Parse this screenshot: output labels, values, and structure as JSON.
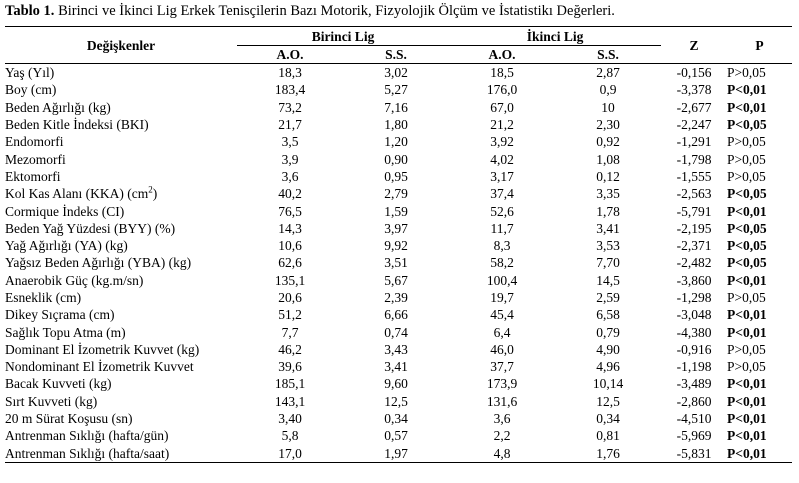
{
  "caption": {
    "label": "Tablo 1.",
    "text": " Birinci ve İkinci Lig Erkek Tenisçilerin Bazı Motorik, Fizyolojik Ölçüm ve İstatistikı  Değerleri."
  },
  "headers": {
    "variable": "Değişkenler",
    "group1": "Birinci Lig",
    "group2": "İkinci Lig",
    "mean": "A.O.",
    "sd": "S.S.",
    "z": "Z",
    "p": "P"
  },
  "rows": [
    {
      "name": "Yaş (Yıl)",
      "m1": "18,3",
      "s1": "3,02",
      "m2": "18,5",
      "s2": "2,87",
      "z": "-0,156",
      "p": "P>0,05",
      "sig": false
    },
    {
      "name": "Boy (cm)",
      "m1": "183,4",
      "s1": "5,27",
      "m2": "176,0",
      "s2": "0,9",
      "z": "-3,378",
      "p": "P<0,01",
      "sig": true
    },
    {
      "name": "Beden Ağırlığı (kg)",
      "m1": "73,2",
      "s1": "7,16",
      "m2": "67,0",
      "s2": "10",
      "z": "-2,677",
      "p": "P<0,01",
      "sig": true
    },
    {
      "name": "Beden Kitle İndeksi (BKI)",
      "m1": "21,7",
      "s1": "1,80",
      "m2": "21,2",
      "s2": "2,30",
      "z": "-2,247",
      "p": "P<0,05",
      "sig": true
    },
    {
      "name": "Endomorfi",
      "m1": "3,5",
      "s1": "1,20",
      "m2": "3,92",
      "s2": "0,92",
      "z": "-1,291",
      "p": "P>0,05",
      "sig": false
    },
    {
      "name": "Mezomorfi",
      "m1": "3,9",
      "s1": "0,90",
      "m2": "4,02",
      "s2": "1,08",
      "z": "-1,798",
      "p": "P>0,05",
      "sig": false
    },
    {
      "name": "Ektomorfi",
      "m1": "3,6",
      "s1": "0,95",
      "m2": "3,17",
      "s2": "0,12",
      "z": "-1,555",
      "p": "P>0,05",
      "sig": false
    },
    {
      "name": "Kol Kas Alanı (KKA) (cm",
      "sup": "2",
      "suffix": ")",
      "m1": "40,2",
      "s1": "2,79",
      "m2": "37,4",
      "s2": "3,35",
      "z": "-2,563",
      "p": "P<0,05",
      "sig": true
    },
    {
      "name": "Cormique İndeks (CI)",
      "m1": "76,5",
      "s1": "1,59",
      "m2": "52,6",
      "s2": "1,78",
      "z": "-5,791",
      "p": "P<0,01",
      "sig": true
    },
    {
      "name": "Beden Yağ Yüzdesi (BYY) (%)",
      "m1": "14,3",
      "s1": "3,97",
      "m2": "11,7",
      "s2": "3,41",
      "z": "-2,195",
      "p": "P<0,05",
      "sig": true
    },
    {
      "name": "Yağ Ağırlığı (YA) (kg)",
      "m1": "10,6",
      "s1": "9,92",
      "m2": "8,3",
      "s2": "3,53",
      "z": "-2,371",
      "p": "P<0,05",
      "sig": true
    },
    {
      "name": "Yağsız Beden Ağırlığı (YBA) (kg)",
      "m1": "62,6",
      "s1": "3,51",
      "m2": "58,2",
      "s2": "7,70",
      "z": "-2,482",
      "p": "P<0,05",
      "sig": true
    },
    {
      "name": "Anaerobik Güç (kg.m/sn)",
      "m1": "135,1",
      "s1": "5,67",
      "m2": "100,4",
      "s2": "14,5",
      "z": "-3,860",
      "p": "P<0,01",
      "sig": true
    },
    {
      "name": "Esneklik (cm)",
      "m1": "20,6",
      "s1": "2,39",
      "m2": "19,7",
      "s2": "2,59",
      "z": "-1,298",
      "p": "P>0,05",
      "sig": false
    },
    {
      "name": "Dikey Sıçrama (cm)",
      "m1": "51,2",
      "s1": "6,66",
      "m2": "45,4",
      "s2": "6,58",
      "z": "-3,048",
      "p": "P<0,01",
      "sig": true
    },
    {
      "name": "Sağlık Topu Atma (m)",
      "m1": "7,7",
      "s1": "0,74",
      "m2": "6,4",
      "s2": "0,79",
      "z": "-4,380",
      "p": "P<0,01",
      "sig": true
    },
    {
      "name": "Dominant El İzometrik Kuvvet (kg)",
      "m1": "46,2",
      "s1": "3,43",
      "m2": "46,0",
      "s2": "4,90",
      "z": "-0,916",
      "p": "P>0,05",
      "sig": false
    },
    {
      "name": "Nondominant El İzometrik Kuvvet",
      "m1": "39,6",
      "s1": "3,41",
      "m2": "37,7",
      "s2": "4,96",
      "z": "-1,198",
      "p": "P>0,05",
      "sig": false
    },
    {
      "name": "Bacak Kuvveti (kg)",
      "m1": "185,1",
      "s1": "9,60",
      "m2": "173,9",
      "s2": "10,14",
      "z": "-3,489",
      "p": "P<0,01",
      "sig": true
    },
    {
      "name": "Sırt Kuvveti (kg)",
      "m1": "143,1",
      "s1": "12,5",
      "m2": "131,6",
      "s2": "12,5",
      "z": "-2,860",
      "p": "P<0,01",
      "sig": true
    },
    {
      "name": "20 m Sürat Koşusu (sn)",
      "m1": "3,40",
      "s1": "0,34",
      "m2": "3,6",
      "s2": "0,34",
      "z": "-4,510",
      "p": "P<0,01",
      "sig": true
    },
    {
      "name": "Antrenman Sıklığı (hafta/gün)",
      "m1": "5,8",
      "s1": "0,57",
      "m2": "2,2",
      "s2": "0,81",
      "z": "-5,969",
      "p": "P<0,01",
      "sig": true
    },
    {
      "name": "Antrenman Sıklığı (hafta/saat)",
      "m1": "17,0",
      "s1": "1,97",
      "m2": "4,8",
      "s2": "1,76",
      "z": "-5,831",
      "p": "P<0,01",
      "sig": true
    }
  ]
}
